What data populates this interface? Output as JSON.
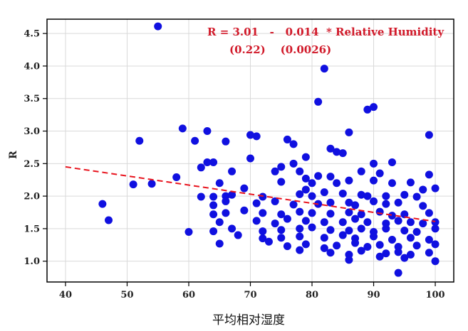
{
  "chart_data": {
    "type": "scatter",
    "xlabel": "平均相对湿度",
    "ylabel": "R",
    "xlim": [
      37,
      103
    ],
    "ylim": [
      0.68,
      4.72
    ],
    "xticks": [
      40,
      50,
      60,
      70,
      80,
      90,
      100
    ],
    "yticks": [
      1.0,
      1.5,
      2.0,
      2.5,
      3.0,
      3.5,
      4.0,
      4.5
    ],
    "grid": true,
    "colors": {
      "points": "#1010e0",
      "fit": "#e8141e",
      "annotation": "#d11a2a"
    },
    "annotation": {
      "line1": "R = 3.01   -   0.014  * Relative Humidity",
      "line2": "(0.22)    (0.0026)"
    },
    "fit": {
      "intercept": 3.01,
      "slope": -0.014,
      "x": [
        40,
        100
      ]
    },
    "points": [
      [
        55,
        4.61
      ],
      [
        82,
        3.96
      ],
      [
        81,
        3.45
      ],
      [
        90,
        3.37
      ],
      [
        89,
        3.33
      ],
      [
        59,
        3.04
      ],
      [
        63,
        3.0
      ],
      [
        71,
        2.92
      ],
      [
        70,
        2.94
      ],
      [
        86,
        2.98
      ],
      [
        99,
        2.94
      ],
      [
        52,
        2.85
      ],
      [
        61,
        2.85
      ],
      [
        66,
        2.84
      ],
      [
        76,
        2.87
      ],
      [
        77,
        2.8
      ],
      [
        83,
        2.73
      ],
      [
        84,
        2.68
      ],
      [
        85,
        2.66
      ],
      [
        79,
        2.6
      ],
      [
        70,
        2.58
      ],
      [
        93,
        2.52
      ],
      [
        63,
        2.52
      ],
      [
        64,
        2.52
      ],
      [
        62,
        2.44
      ],
      [
        75,
        2.45
      ],
      [
        77,
        2.5
      ],
      [
        90,
        2.5
      ],
      [
        58,
        2.29
      ],
      [
        67,
        2.38
      ],
      [
        74,
        2.38
      ],
      [
        78,
        2.38
      ],
      [
        81,
        2.31
      ],
      [
        88,
        2.38
      ],
      [
        91,
        2.35
      ],
      [
        99,
        2.33
      ],
      [
        83,
        2.3
      ],
      [
        51,
        2.18
      ],
      [
        54,
        2.19
      ],
      [
        65,
        2.2
      ],
      [
        69,
        2.12
      ],
      [
        75,
        2.22
      ],
      [
        79,
        2.27
      ],
      [
        80,
        2.2
      ],
      [
        84,
        2.2
      ],
      [
        86,
        2.24
      ],
      [
        90,
        2.24
      ],
      [
        93,
        2.2
      ],
      [
        96,
        2.21
      ],
      [
        98,
        2.1
      ],
      [
        100,
        2.12
      ],
      [
        62,
        1.99
      ],
      [
        64,
        1.99
      ],
      [
        66,
        2.0
      ],
      [
        67,
        2.02
      ],
      [
        72,
        1.99
      ],
      [
        78,
        2.03
      ],
      [
        79,
        2.1
      ],
      [
        80,
        2.0
      ],
      [
        82,
        2.06
      ],
      [
        85,
        2.04
      ],
      [
        88,
        2.02
      ],
      [
        89,
        2.0
      ],
      [
        92,
        2.0
      ],
      [
        95,
        2.02
      ],
      [
        97,
        1.99
      ],
      [
        46,
        1.88
      ],
      [
        64,
        1.86
      ],
      [
        66,
        1.92
      ],
      [
        71,
        1.89
      ],
      [
        74,
        1.92
      ],
      [
        77,
        1.87
      ],
      [
        81,
        1.88
      ],
      [
        83,
        1.9
      ],
      [
        86,
        1.9
      ],
      [
        87,
        1.86
      ],
      [
        90,
        1.92
      ],
      [
        92,
        1.88
      ],
      [
        94,
        1.9
      ],
      [
        98,
        1.85
      ],
      [
        64,
        1.72
      ],
      [
        66,
        1.74
      ],
      [
        69,
        1.78
      ],
      [
        72,
        1.74
      ],
      [
        75,
        1.72
      ],
      [
        78,
        1.76
      ],
      [
        80,
        1.74
      ],
      [
        83,
        1.73
      ],
      [
        86,
        1.75
      ],
      [
        88,
        1.72
      ],
      [
        91,
        1.76
      ],
      [
        93,
        1.7
      ],
      [
        95,
        1.72
      ],
      [
        99,
        1.74
      ],
      [
        47,
        1.63
      ],
      [
        65,
        1.6
      ],
      [
        71,
        1.62
      ],
      [
        74,
        1.58
      ],
      [
        76,
        1.65
      ],
      [
        79,
        1.62
      ],
      [
        82,
        1.6
      ],
      [
        85,
        1.6
      ],
      [
        87,
        1.65
      ],
      [
        89,
        1.6
      ],
      [
        92,
        1.58
      ],
      [
        94,
        1.62
      ],
      [
        96,
        1.6
      ],
      [
        98,
        1.58
      ],
      [
        100,
        1.6
      ],
      [
        60,
        1.45
      ],
      [
        64,
        1.46
      ],
      [
        67,
        1.5
      ],
      [
        72,
        1.46
      ],
      [
        75,
        1.48
      ],
      [
        78,
        1.5
      ],
      [
        80,
        1.52
      ],
      [
        83,
        1.48
      ],
      [
        86,
        1.47
      ],
      [
        88,
        1.5
      ],
      [
        90,
        1.45
      ],
      [
        92,
        1.5
      ],
      [
        95,
        1.47
      ],
      [
        97,
        1.45
      ],
      [
        100,
        1.5
      ],
      [
        68,
        1.4
      ],
      [
        72,
        1.35
      ],
      [
        75,
        1.36
      ],
      [
        78,
        1.38
      ],
      [
        82,
        1.36
      ],
      [
        85,
        1.4
      ],
      [
        87,
        1.35
      ],
      [
        90,
        1.38
      ],
      [
        93,
        1.33
      ],
      [
        96,
        1.36
      ],
      [
        99,
        1.33
      ],
      [
        65,
        1.27
      ],
      [
        73,
        1.3
      ],
      [
        76,
        1.23
      ],
      [
        79,
        1.26
      ],
      [
        82,
        1.2
      ],
      [
        84,
        1.24
      ],
      [
        87,
        1.28
      ],
      [
        89,
        1.22
      ],
      [
        91,
        1.25
      ],
      [
        94,
        1.22
      ],
      [
        97,
        1.24
      ],
      [
        100,
        1.26
      ],
      [
        78,
        1.17
      ],
      [
        83,
        1.13
      ],
      [
        86,
        1.1
      ],
      [
        88,
        1.16
      ],
      [
        92,
        1.12
      ],
      [
        94,
        1.14
      ],
      [
        96,
        1.1
      ],
      [
        99,
        1.13
      ],
      [
        86,
        1.02
      ],
      [
        91,
        1.07
      ],
      [
        95,
        1.05
      ],
      [
        100,
        1.0
      ],
      [
        94,
        0.82
      ]
    ]
  }
}
